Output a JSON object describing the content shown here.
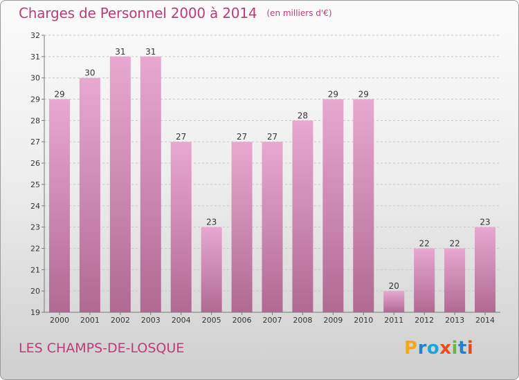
{
  "header": {
    "title": "Charges de Personnel 2000 à 2014",
    "subtitle": "(en milliers d'€)"
  },
  "footer": {
    "commune": "LES CHAMPS-DE-LOSQUE",
    "logo": "Proxiti"
  },
  "colors": {
    "accent": "#c0397a",
    "bar_top": "#e8a8d0",
    "bar_bottom": "#b06a92",
    "logo_letters": [
      "#f4a81c",
      "#2a7fc6",
      "#1aa7d8",
      "#e94b1e",
      "#6bb544",
      "#2a7fc6",
      "#e94b1e"
    ]
  },
  "chart_data": {
    "type": "bar",
    "title": "Charges de Personnel 2000 à 2014",
    "subtitle": "(en milliers d'€)",
    "categories": [
      "2000",
      "2001",
      "2002",
      "2003",
      "2004",
      "2005",
      "2006",
      "2007",
      "2008",
      "2009",
      "2010",
      "2011",
      "2012",
      "2013",
      "2014"
    ],
    "values": [
      29,
      30,
      31,
      31,
      27,
      23,
      27,
      27,
      28,
      29,
      29,
      20,
      22,
      22,
      23
    ],
    "ylim": [
      19,
      32
    ],
    "yticks": [
      19,
      20,
      21,
      22,
      23,
      24,
      25,
      26,
      27,
      28,
      29,
      30,
      31,
      32
    ],
    "grid": true,
    "data_labels": true,
    "xlabel": "",
    "ylabel": ""
  }
}
